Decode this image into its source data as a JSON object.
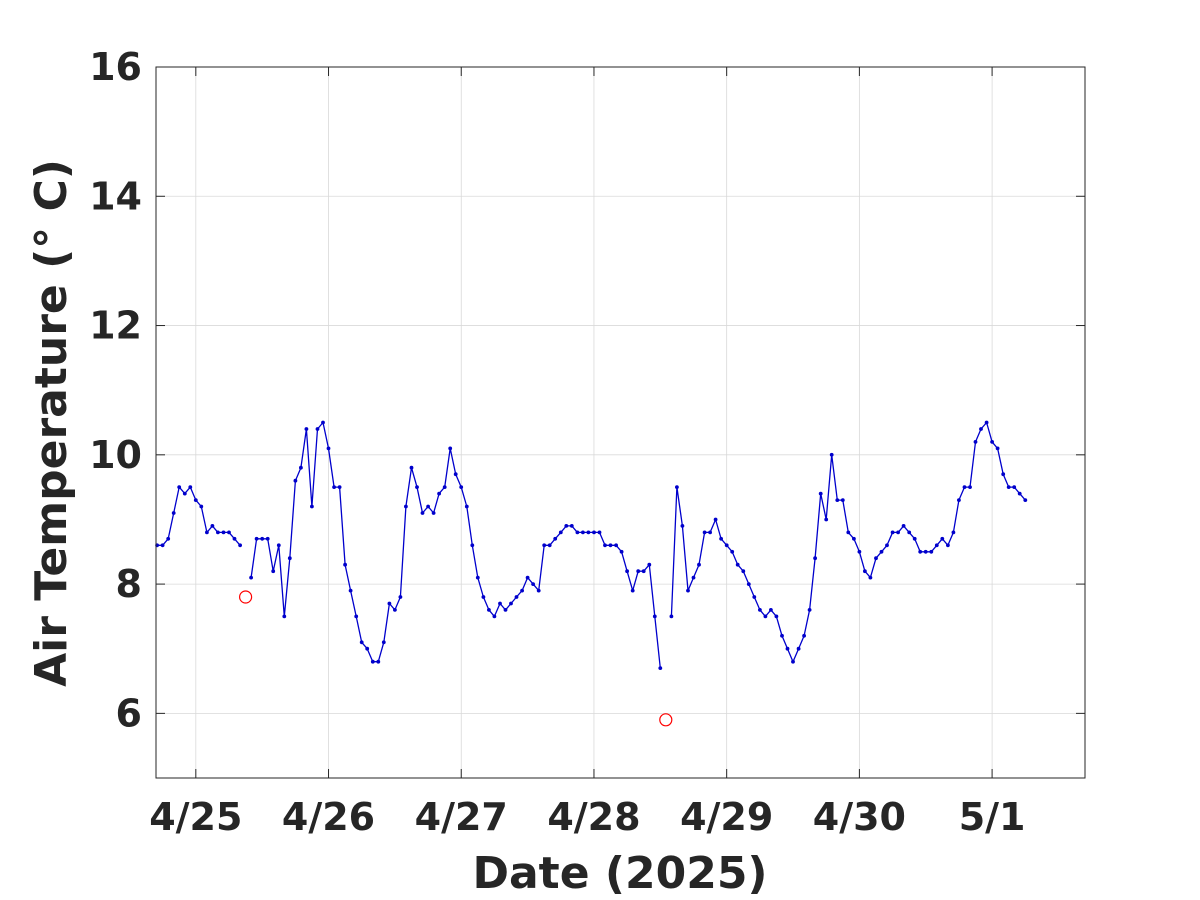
{
  "chart_data": {
    "type": "line",
    "title": "",
    "xlabel": "Date (2025)",
    "ylabel": "Air Temperature (° C)",
    "xlim": [
      "2025-04-24T16:48",
      "2025-05-01T16:48"
    ],
    "ylim": [
      5,
      16
    ],
    "grid": true,
    "legend": "none",
    "x_ticks": [
      {
        "date": "2025-04-25",
        "label": "4/25"
      },
      {
        "date": "2025-04-26",
        "label": "4/26"
      },
      {
        "date": "2025-04-27",
        "label": "4/27"
      },
      {
        "date": "2025-04-28",
        "label": "4/28"
      },
      {
        "date": "2025-04-29",
        "label": "4/29"
      },
      {
        "date": "2025-04-30",
        "label": "4/30"
      },
      {
        "date": "2025-05-01",
        "label": "5/1"
      }
    ],
    "y_ticks": [
      6,
      8,
      10,
      12,
      14,
      16
    ],
    "series": [
      {
        "color": "#0000cc",
        "marker": "dot",
        "segments": [
          {
            "x": [
              "2025-04-24T17:00",
              "2025-04-24T18:00",
              "2025-04-24T19:00",
              "2025-04-24T20:00",
              "2025-04-24T21:00",
              "2025-04-24T22:00",
              "2025-04-24T23:00",
              "2025-04-25T00:00",
              "2025-04-25T01:00",
              "2025-04-25T02:00",
              "2025-04-25T03:00",
              "2025-04-25T04:00",
              "2025-04-25T05:00",
              "2025-04-25T06:00",
              "2025-04-25T07:00",
              "2025-04-25T08:00"
            ],
            "y": [
              8.6,
              8.6,
              8.7,
              9.1,
              9.5,
              9.4,
              9.5,
              9.3,
              9.2,
              8.8,
              8.9,
              8.8,
              8.8,
              8.8,
              8.7,
              8.6
            ]
          },
          {
            "x": [
              "2025-04-25T10:00",
              "2025-04-25T11:00",
              "2025-04-25T12:00",
              "2025-04-25T13:00",
              "2025-04-25T14:00",
              "2025-04-25T15:00",
              "2025-04-25T16:00",
              "2025-04-25T17:00",
              "2025-04-25T18:00",
              "2025-04-25T19:00",
              "2025-04-25T20:00",
              "2025-04-25T21:00",
              "2025-04-25T22:00",
              "2025-04-25T23:00",
              "2025-04-26T00:00",
              "2025-04-26T01:00",
              "2025-04-26T02:00",
              "2025-04-26T03:00",
              "2025-04-26T04:00",
              "2025-04-26T05:00",
              "2025-04-26T06:00",
              "2025-04-26T07:00",
              "2025-04-26T08:00",
              "2025-04-26T09:00",
              "2025-04-26T10:00",
              "2025-04-26T11:00",
              "2025-04-26T12:00",
              "2025-04-26T13:00",
              "2025-04-26T14:00",
              "2025-04-26T15:00",
              "2025-04-26T16:00",
              "2025-04-26T17:00",
              "2025-04-26T18:00",
              "2025-04-26T19:00",
              "2025-04-26T20:00",
              "2025-04-26T21:00",
              "2025-04-26T22:00",
              "2025-04-26T23:00",
              "2025-04-27T00:00",
              "2025-04-27T01:00",
              "2025-04-27T02:00",
              "2025-04-27T03:00",
              "2025-04-27T04:00",
              "2025-04-27T05:00",
              "2025-04-27T06:00",
              "2025-04-27T07:00",
              "2025-04-27T08:00",
              "2025-04-27T09:00",
              "2025-04-27T10:00",
              "2025-04-27T11:00",
              "2025-04-27T12:00",
              "2025-04-27T13:00",
              "2025-04-27T14:00",
              "2025-04-27T15:00",
              "2025-04-27T16:00",
              "2025-04-27T17:00",
              "2025-04-27T18:00",
              "2025-04-27T19:00",
              "2025-04-27T20:00",
              "2025-04-27T21:00",
              "2025-04-27T22:00",
              "2025-04-27T23:00",
              "2025-04-28T00:00",
              "2025-04-28T01:00",
              "2025-04-28T02:00",
              "2025-04-28T03:00",
              "2025-04-28T04:00",
              "2025-04-28T05:00",
              "2025-04-28T06:00",
              "2025-04-28T07:00",
              "2025-04-28T08:00",
              "2025-04-28T09:00",
              "2025-04-28T10:00",
              "2025-04-28T11:00",
              "2025-04-28T12:00"
            ],
            "y": [
              8.1,
              8.7,
              8.7,
              8.7,
              8.2,
              8.6,
              7.5,
              8.4,
              9.6,
              9.8,
              10.4,
              9.2,
              10.4,
              10.5,
              10.1,
              9.5,
              9.5,
              8.3,
              7.9,
              7.5,
              7.1,
              7.0,
              6.8,
              6.8,
              7.1,
              7.7,
              7.6,
              7.8,
              9.2,
              9.8,
              9.5,
              9.1,
              9.2,
              9.1,
              9.4,
              9.5,
              10.1,
              9.7,
              9.5,
              9.2,
              8.6,
              8.1,
              7.8,
              7.6,
              7.5,
              7.7,
              7.6,
              7.7,
              7.8,
              7.9,
              8.1,
              8.0,
              7.9,
              8.6,
              8.6,
              8.7,
              8.8,
              8.9,
              8.9,
              8.8,
              8.8,
              8.8,
              8.8,
              8.8,
              8.6,
              8.6,
              8.6,
              8.5,
              8.2,
              7.9,
              8.2,
              8.2,
              8.3,
              7.5,
              6.7
            ]
          },
          {
            "x": [
              "2025-04-28T14:00",
              "2025-04-28T15:00",
              "2025-04-28T16:00",
              "2025-04-28T17:00",
              "2025-04-28T18:00",
              "2025-04-28T19:00",
              "2025-04-28T20:00",
              "2025-04-28T21:00",
              "2025-04-28T22:00",
              "2025-04-28T23:00",
              "2025-04-29T00:00",
              "2025-04-29T01:00",
              "2025-04-29T02:00",
              "2025-04-29T03:00",
              "2025-04-29T04:00",
              "2025-04-29T05:00",
              "2025-04-29T06:00",
              "2025-04-29T07:00",
              "2025-04-29T08:00",
              "2025-04-29T09:00",
              "2025-04-29T10:00",
              "2025-04-29T11:00",
              "2025-04-29T12:00",
              "2025-04-29T13:00",
              "2025-04-29T14:00",
              "2025-04-29T15:00",
              "2025-04-29T16:00",
              "2025-04-29T17:00",
              "2025-04-29T18:00",
              "2025-04-29T19:00",
              "2025-04-29T20:00",
              "2025-04-29T21:00",
              "2025-04-29T22:00",
              "2025-04-29T23:00",
              "2025-04-30T00:00",
              "2025-04-30T01:00",
              "2025-04-30T02:00",
              "2025-04-30T03:00",
              "2025-04-30T04:00",
              "2025-04-30T05:00",
              "2025-04-30T06:00",
              "2025-04-30T07:00",
              "2025-04-30T08:00",
              "2025-04-30T09:00",
              "2025-04-30T10:00",
              "2025-04-30T11:00",
              "2025-04-30T12:00",
              "2025-04-30T13:00",
              "2025-04-30T14:00",
              "2025-04-30T15:00",
              "2025-04-30T16:00",
              "2025-04-30T17:00",
              "2025-04-30T18:00",
              "2025-04-30T19:00",
              "2025-04-30T20:00",
              "2025-04-30T21:00",
              "2025-04-30T22:00",
              "2025-04-30T23:00",
              "2025-05-01T00:00",
              "2025-05-01T01:00",
              "2025-05-01T02:00",
              "2025-05-01T03:00",
              "2025-05-01T04:00",
              "2025-05-01T05:00",
              "2025-05-01T06:00"
            ],
            "y": [
              7.5,
              9.5,
              8.9,
              7.9,
              8.1,
              8.3,
              8.8,
              8.8,
              9.0,
              8.7,
              8.6,
              8.5,
              8.3,
              8.2,
              8.0,
              7.8,
              7.6,
              7.5,
              7.6,
              7.5,
              7.2,
              7.0,
              6.8,
              7.0,
              7.2,
              7.6,
              8.4,
              9.4,
              9.0,
              10.0,
              9.3,
              9.3,
              8.8,
              8.7,
              8.5,
              8.2,
              8.1,
              8.4,
              8.5,
              8.6,
              8.8,
              8.8,
              8.9,
              8.8,
              8.7,
              8.5,
              8.5,
              8.5,
              8.6,
              8.7,
              8.6,
              8.8,
              9.3,
              9.5,
              9.5,
              10.2,
              10.4,
              10.5,
              10.2,
              10.1,
              9.7,
              9.5,
              9.5,
              9.4,
              9.3
            ]
          }
        ]
      },
      {
        "color": "#ff0000",
        "marker": "open-circle",
        "points": [
          {
            "x": "2025-04-25T09:00",
            "y": 7.8
          },
          {
            "x": "2025-04-28T13:00",
            "y": 5.9
          }
        ]
      }
    ]
  }
}
